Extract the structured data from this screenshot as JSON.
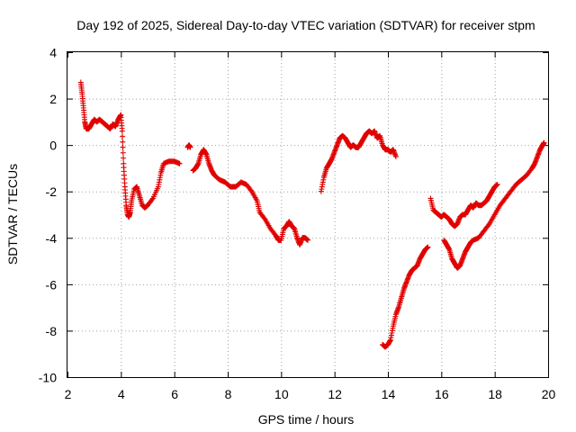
{
  "chart_data": {
    "type": "scatter",
    "title": "Day 192 of 2025, Sidereal Day-to-day VTEC variation (SDTVAR) for receiver stpm",
    "xlabel": "GPS time / hours",
    "ylabel": "SDTVAR / TECUs",
    "xlim": [
      2,
      20
    ],
    "ylim": [
      -10,
      4
    ],
    "xticks": [
      "2",
      "4",
      "6",
      "8",
      "10",
      "12",
      "14",
      "16",
      "18",
      "20"
    ],
    "yticks": [
      "4",
      "2",
      "0",
      "-2",
      "-4",
      "-6",
      "-8",
      "-10"
    ],
    "grid": true,
    "marker": "+",
    "color": "#e00000",
    "series": [
      {
        "name": "SDTVAR",
        "segments": [
          [
            [
              2.5,
              2.7
            ],
            [
              2.55,
              2.2
            ],
            [
              2.6,
              1.6
            ],
            [
              2.65,
              1.0
            ],
            [
              2.7,
              0.7
            ],
            [
              2.8,
              0.7
            ],
            [
              2.9,
              0.9
            ],
            [
              3.0,
              1.1
            ],
            [
              3.1,
              1.0
            ],
            [
              3.2,
              1.1
            ],
            [
              3.3,
              1.0
            ],
            [
              3.4,
              0.9
            ],
            [
              3.5,
              0.8
            ],
            [
              3.6,
              0.7
            ],
            [
              3.7,
              0.9
            ],
            [
              3.8,
              0.8
            ],
            [
              3.9,
              1.1
            ],
            [
              4.0,
              1.3
            ],
            [
              4.05,
              0.6
            ],
            [
              4.1,
              -0.8
            ],
            [
              4.15,
              -1.8
            ],
            [
              4.2,
              -2.6
            ],
            [
              4.25,
              -3.0
            ],
            [
              4.3,
              -3.1
            ],
            [
              4.35,
              -2.9
            ],
            [
              4.4,
              -2.4
            ],
            [
              4.5,
              -1.9
            ],
            [
              4.6,
              -1.8
            ],
            [
              4.7,
              -2.2
            ],
            [
              4.8,
              -2.6
            ],
            [
              4.9,
              -2.7
            ],
            [
              5.0,
              -2.6
            ],
            [
              5.2,
              -2.3
            ],
            [
              5.4,
              -1.8
            ],
            [
              5.5,
              -1.2
            ],
            [
              5.6,
              -0.8
            ],
            [
              5.8,
              -0.7
            ],
            [
              6.0,
              -0.7
            ],
            [
              6.2,
              -0.8
            ]
          ],
          [
            [
              6.5,
              -0.1
            ],
            [
              6.55,
              0.0
            ],
            [
              6.6,
              -0.1
            ]
          ],
          [
            [
              6.7,
              -1.1
            ],
            [
              6.8,
              -1.0
            ],
            [
              6.9,
              -0.8
            ],
            [
              7.0,
              -0.4
            ],
            [
              7.1,
              -0.2
            ],
            [
              7.2,
              -0.4
            ],
            [
              7.3,
              -0.8
            ],
            [
              7.4,
              -1.1
            ],
            [
              7.5,
              -1.3
            ],
            [
              7.7,
              -1.5
            ],
            [
              7.9,
              -1.6
            ],
            [
              8.1,
              -1.8
            ],
            [
              8.3,
              -1.8
            ],
            [
              8.5,
              -1.6
            ],
            [
              8.7,
              -1.7
            ],
            [
              8.9,
              -2.0
            ],
            [
              9.1,
              -2.4
            ],
            [
              9.2,
              -2.9
            ],
            [
              9.4,
              -3.2
            ],
            [
              9.6,
              -3.6
            ],
            [
              9.8,
              -3.9
            ],
            [
              9.9,
              -4.1
            ],
            [
              10.0,
              -4.1
            ],
            [
              10.1,
              -3.6
            ],
            [
              10.2,
              -3.5
            ],
            [
              10.3,
              -3.3
            ],
            [
              10.4,
              -3.5
            ],
            [
              10.5,
              -3.6
            ],
            [
              10.6,
              -4.0
            ],
            [
              10.7,
              -4.3
            ],
            [
              10.8,
              -4.0
            ],
            [
              10.9,
              -4.0
            ],
            [
              11.0,
              -4.1
            ]
          ],
          [
            [
              11.5,
              -2.0
            ],
            [
              11.6,
              -1.4
            ],
            [
              11.7,
              -1.0
            ],
            [
              11.8,
              -0.8
            ],
            [
              11.9,
              -0.6
            ],
            [
              12.0,
              -0.3
            ],
            [
              12.1,
              0.0
            ],
            [
              12.2,
              0.3
            ],
            [
              12.3,
              0.4
            ],
            [
              12.4,
              0.3
            ],
            [
              12.5,
              0.1
            ],
            [
              12.6,
              -0.1
            ],
            [
              12.7,
              0.0
            ],
            [
              12.8,
              -0.1
            ],
            [
              12.9,
              -0.1
            ],
            [
              13.0,
              0.1
            ],
            [
              13.1,
              0.3
            ],
            [
              13.2,
              0.5
            ],
            [
              13.3,
              0.6
            ],
            [
              13.4,
              0.5
            ],
            [
              13.5,
              0.6
            ],
            [
              13.6,
              0.3
            ],
            [
              13.7,
              0.4
            ],
            [
              13.8,
              0.0
            ],
            [
              13.9,
              -0.2
            ],
            [
              14.0,
              -0.2
            ],
            [
              14.1,
              -0.3
            ],
            [
              14.2,
              -0.2
            ],
            [
              14.3,
              -0.5
            ]
          ],
          [
            [
              13.8,
              -8.6
            ],
            [
              13.9,
              -8.7
            ],
            [
              14.0,
              -8.6
            ],
            [
              14.1,
              -8.4
            ],
            [
              14.2,
              -7.8
            ],
            [
              14.3,
              -7.3
            ],
            [
              14.4,
              -7.0
            ],
            [
              14.5,
              -6.6
            ],
            [
              14.6,
              -6.2
            ],
            [
              14.7,
              -5.9
            ],
            [
              14.8,
              -5.6
            ],
            [
              14.9,
              -5.4
            ],
            [
              15.0,
              -5.3
            ],
            [
              15.1,
              -5.2
            ],
            [
              15.2,
              -4.9
            ],
            [
              15.3,
              -4.7
            ],
            [
              15.4,
              -4.5
            ],
            [
              15.5,
              -4.4
            ]
          ],
          [
            [
              15.6,
              -2.3
            ],
            [
              15.7,
              -2.8
            ],
            [
              15.8,
              -2.9
            ],
            [
              15.9,
              -3.0
            ],
            [
              16.0,
              -3.1
            ],
            [
              16.1,
              -3.0
            ],
            [
              16.2,
              -3.1
            ],
            [
              16.3,
              -3.2
            ],
            [
              16.4,
              -3.4
            ],
            [
              16.5,
              -3.5
            ],
            [
              16.6,
              -3.4
            ],
            [
              16.7,
              -3.1
            ],
            [
              16.8,
              -3.0
            ],
            [
              16.9,
              -3.0
            ],
            [
              17.0,
              -2.8
            ],
            [
              17.1,
              -2.6
            ],
            [
              17.2,
              -2.7
            ],
            [
              17.3,
              -2.5
            ],
            [
              17.4,
              -2.6
            ],
            [
              17.5,
              -2.6
            ],
            [
              17.6,
              -2.5
            ],
            [
              17.7,
              -2.4
            ],
            [
              17.8,
              -2.2
            ],
            [
              17.9,
              -2.0
            ],
            [
              18.0,
              -1.8
            ],
            [
              18.1,
              -1.7
            ]
          ],
          [
            [
              16.1,
              -4.1
            ],
            [
              16.2,
              -4.3
            ],
            [
              16.3,
              -4.5
            ],
            [
              16.4,
              -4.9
            ],
            [
              16.5,
              -5.1
            ],
            [
              16.6,
              -5.3
            ],
            [
              16.7,
              -5.2
            ],
            [
              16.8,
              -4.9
            ],
            [
              16.9,
              -4.6
            ],
            [
              17.0,
              -4.4
            ],
            [
              17.1,
              -4.2
            ],
            [
              17.2,
              -4.1
            ],
            [
              17.4,
              -4.0
            ],
            [
              17.6,
              -3.7
            ],
            [
              17.8,
              -3.4
            ],
            [
              18.0,
              -3.0
            ],
            [
              18.2,
              -2.6
            ],
            [
              18.4,
              -2.3
            ],
            [
              18.6,
              -2.0
            ],
            [
              18.8,
              -1.7
            ],
            [
              19.0,
              -1.5
            ],
            [
              19.2,
              -1.3
            ],
            [
              19.4,
              -1.0
            ],
            [
              19.5,
              -0.8
            ],
            [
              19.6,
              -0.5
            ],
            [
              19.7,
              -0.2
            ],
            [
              19.8,
              0.0
            ],
            [
              19.85,
              0.1
            ]
          ]
        ]
      }
    ]
  }
}
